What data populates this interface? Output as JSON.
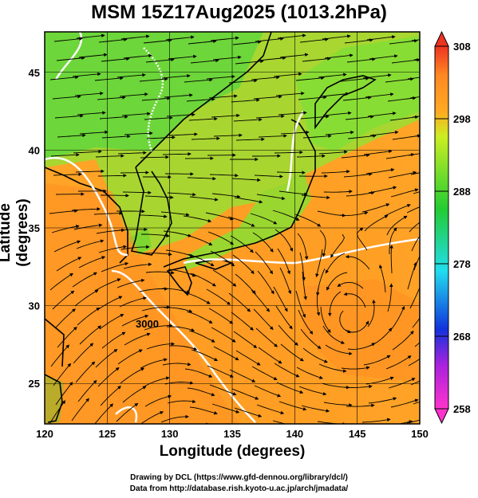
{
  "title": "MSM 15Z17Aug2025 (1013.2hPa)",
  "xaxis": {
    "label": "Longitude (degrees)",
    "ticks": [
      120,
      125,
      130,
      135,
      140,
      145,
      150
    ],
    "range": [
      120,
      150
    ]
  },
  "yaxis": {
    "label": "Latitude  (degrees)",
    "ticks": [
      25,
      30,
      35,
      40,
      45
    ],
    "range": [
      22.4,
      47.6
    ]
  },
  "colorbar": {
    "ticks": [
      258,
      268,
      278,
      288,
      298,
      308
    ],
    "range": [
      258,
      308
    ],
    "colors": {
      "min": "#ff33cc",
      "blue": "#1133dd",
      "cyan": "#22ddee",
      "green": "#22cc33",
      "yellow": "#eeee22",
      "orange": "#ff9922",
      "max": "#ee3322"
    }
  },
  "contour_label": "3000",
  "credits": {
    "line1": "Drawing by DCL (https://www.gfd-dennou.org/library/dcl/)",
    "line2": "Data from http://database.rish.kyoto-u.ac.jp/arch/jmadata/"
  }
}
